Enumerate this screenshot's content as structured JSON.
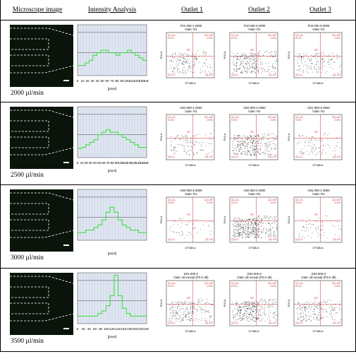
{
  "headers": {
    "microscope": "Microscope image",
    "intensity": "Intensity Analysis",
    "outlet1": "Outlet 1",
    "outlet2": "Outlet 2",
    "outlet3": "Outlet 3"
  },
  "rows": [
    {
      "rate": "2000 µl/min",
      "intensity": {
        "xticks": [
          "0",
          "10",
          "20",
          "30",
          "40",
          "50",
          "60",
          "70",
          "80",
          "90",
          "100",
          "110",
          "120",
          "130",
          "140"
        ],
        "xlabel": "[pixel]",
        "profile": [
          0.2,
          0.2,
          0.25,
          0.3,
          0.4,
          0.45,
          0.5,
          0.5,
          0.45,
          0.45,
          0.4,
          0.45,
          0.45,
          0.5,
          0.45,
          0.4,
          0.35,
          0.3
        ]
      },
      "facs": [
        {
          "title": "F01 000-1-2000",
          "gate": "Gate: R1",
          "ul": "Q1-UL",
          "ulv": "0.0%",
          "ur": "Q1-UR",
          "urv": "0.0%",
          "lr": "Q1-LR",
          "ll": "Q1-LL",
          "xlabel": "CF388-A",
          "ylabel": "FL6-A",
          "q": "Q1"
        },
        {
          "title": "F02 000-2-2000",
          "gate": "Gate: R1",
          "ul": "Q1-UL",
          "ulv": "0.0%",
          "ur": "Q1-UR",
          "urv": "0.0%",
          "lr": "Q1-LR",
          "ll": "Q1-LL",
          "xlabel": "CF388-A",
          "ylabel": "FL6-A",
          "q": "Q1"
        },
        {
          "title": "F03 000-3-2000",
          "gate": "Gate: R1",
          "ul": "Q1-UL",
          "ulv": "0.0%",
          "ur": "Q1-UR",
          "urv": "0.0%",
          "lr": "Q1-LR",
          "ll": "Q1-LL",
          "xlabel": "CF388-A",
          "ylabel": "FL6-A",
          "q": "Q1"
        }
      ]
    },
    {
      "rate": "2500 µl/min",
      "intensity": {
        "xticks": [
          "0",
          "10",
          "20",
          "30",
          "40",
          "50",
          "60",
          "70",
          "80",
          "90",
          "100",
          "110",
          "120",
          "130",
          "140",
          "150",
          "160"
        ],
        "xlabel": "[pixel]",
        "profile": [
          0.18,
          0.2,
          0.25,
          0.3,
          0.35,
          0.45,
          0.5,
          0.55,
          0.5,
          0.5,
          0.45,
          0.4,
          0.35,
          0.3,
          0.25,
          0.2,
          0.2
        ]
      },
      "facs": [
        {
          "title": "G03 000-1-2500",
          "gate": "Gate: R1",
          "ul": "Q1-UL",
          "ulv": "0.0%",
          "ur": "Q1-UR",
          "urv": "0.0%",
          "lr": "Q1-LR",
          "ll": "Q1-LL",
          "xlabel": "CF388-A",
          "ylabel": "FL6-A",
          "q": "Q1"
        },
        {
          "title": "G02 000-2-2500",
          "gate": "Gate: R1",
          "ul": "Q1-UL",
          "ulv": "0.0%",
          "ur": "Q1-UR",
          "urv": "0.0%",
          "lr": "Q1-LR",
          "ll": "Q1-LL",
          "xlabel": "CF388-A",
          "ylabel": "FL6-A",
          "q": "Q1"
        },
        {
          "title": "G01 000-3-2500",
          "gate": "Gate: R1",
          "ul": "Q1-UL",
          "ulv": "0.0%",
          "ur": "Q1-UR",
          "urv": "0.0%",
          "lr": "Q1-LR",
          "ll": "Q1-LL",
          "xlabel": "CF388-A",
          "ylabel": "FL6-A",
          "q": "Q1"
        }
      ]
    },
    {
      "rate": "3000 µl/min",
      "intensity": {
        "xticks": [],
        "xlabel": "[pixel]",
        "profile": [
          0.15,
          0.15,
          0.2,
          0.2,
          0.25,
          0.3,
          0.4,
          0.55,
          0.65,
          0.55,
          0.4,
          0.3,
          0.25,
          0.2,
          0.2,
          0.15,
          0.15
        ]
      },
      "facs": [
        {
          "title": "H03 000-3-3000",
          "gate": "Gate: R1",
          "ul": "Q1-UL",
          "ulv": "0.0%",
          "ur": "Q1-UR",
          "urv": "0.0%",
          "lr": "Q1-LR",
          "ll": "Q1-LL",
          "xlabel": "CF388-A",
          "ylabel": "FL6-A",
          "q": "Q1"
        },
        {
          "title": "H02 000-2-3000",
          "gate": "Gate: R1",
          "ul": "Q1-UL",
          "ulv": "0.0%",
          "ur": "Q1-UR",
          "urv": "0.0%",
          "lr": "Q1-LR",
          "ll": "Q1-LL",
          "xlabel": "CF388-A",
          "ylabel": "FL6-A",
          "q": "Q1"
        },
        {
          "title": "H01 000-1-3000",
          "gate": "Gate: R1",
          "ul": "Q1-UL",
          "ulv": "0.0%",
          "ur": "Q1-UR",
          "urv": "0.0%",
          "lr": "Q1-LR",
          "ll": "Q1-LL",
          "xlabel": "CF388-A",
          "ylabel": "FL6-A",
          "q": "Q1"
        }
      ]
    },
    {
      "rate": "3500 µl/min",
      "intensity": {
        "xticks": [
          "0",
          "20",
          "40",
          "60",
          "80",
          "100",
          "120",
          "140",
          "160",
          "180",
          "200",
          "220",
          "240"
        ],
        "xlabel": "[pixel]",
        "profile": [
          0.15,
          0.15,
          0.15,
          0.15,
          0.15,
          0.2,
          0.25,
          0.35,
          0.55,
          0.95,
          0.55,
          0.3,
          0.2,
          0.15,
          0.15,
          0.15,
          0.15
        ]
      },
      "facs": [
        {
          "title": "E01 000-1",
          "gate": "Gate: all except (P3 in all)",
          "ul": "Q1-UL",
          "ulv": "0.0%",
          "ur": "Q1-UR",
          "urv": "0.0%",
          "lr": "Q1-LR",
          "ll": "Q1-LL",
          "xlabel": "CF388-A",
          "ylabel": "FL6-A",
          "q": "Q1"
        },
        {
          "title": "E02 000-2",
          "gate": "Gate: all except (P3 in all)",
          "ul": "Q1-UL",
          "ulv": "0.0%",
          "ur": "Q1-UR",
          "urv": "0.0%",
          "lr": "Q1-LR",
          "ll": "Q1-LL",
          "xlabel": "CF388-A",
          "ylabel": "FL6-A",
          "q": "Q1"
        },
        {
          "title": "E03 000-3",
          "gate": "Gate: all except (P3 in all)",
          "ul": "Q1-UL",
          "ulv": "0.0%",
          "ur": "Q1-UR",
          "urv": "0.0%",
          "lr": "Q1-LR",
          "ll": "Q1-LL",
          "xlabel": "CF388-A",
          "ylabel": "FL6-A",
          "q": "Q1"
        }
      ]
    }
  ],
  "colors": {
    "profile": "#33dd33",
    "plotbg": "#dfe6f2",
    "quad": "#cc3333",
    "dots": "#111111",
    "micro_bg": "#0a140a"
  }
}
